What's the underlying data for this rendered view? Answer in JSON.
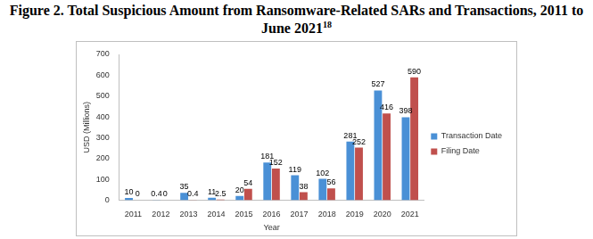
{
  "chart_data": {
    "type": "bar",
    "title": "Figure 2. Total Suspicious Amount from Ransomware-Related SARs and Transactions, 2011 to June 2021",
    "annotations": [
      "18"
    ],
    "x_label": "Year",
    "y_label": "USD (Millions)",
    "categories": [
      "2011",
      "2012",
      "2013",
      "2014",
      "2015",
      "2016",
      "2017",
      "2018",
      "2019",
      "2020",
      "2021"
    ],
    "series": [
      {
        "name": "Transaction Date",
        "color": "#4a90d6",
        "values": [
          10,
          0.4,
          35,
          11,
          20,
          181,
          119,
          102,
          281,
          527,
          398
        ]
      },
      {
        "name": "Filing Date",
        "color": "#c0504d",
        "values": [
          0,
          0,
          0.4,
          2.5,
          54,
          152,
          38,
          56,
          252,
          416,
          590
        ]
      }
    ],
    "ylim": [
      0,
      700
    ],
    "yticks": [
      0,
      100,
      200,
      300,
      400,
      500,
      600,
      700
    ],
    "grid": false,
    "legend": "right",
    "data_labels": true
  }
}
